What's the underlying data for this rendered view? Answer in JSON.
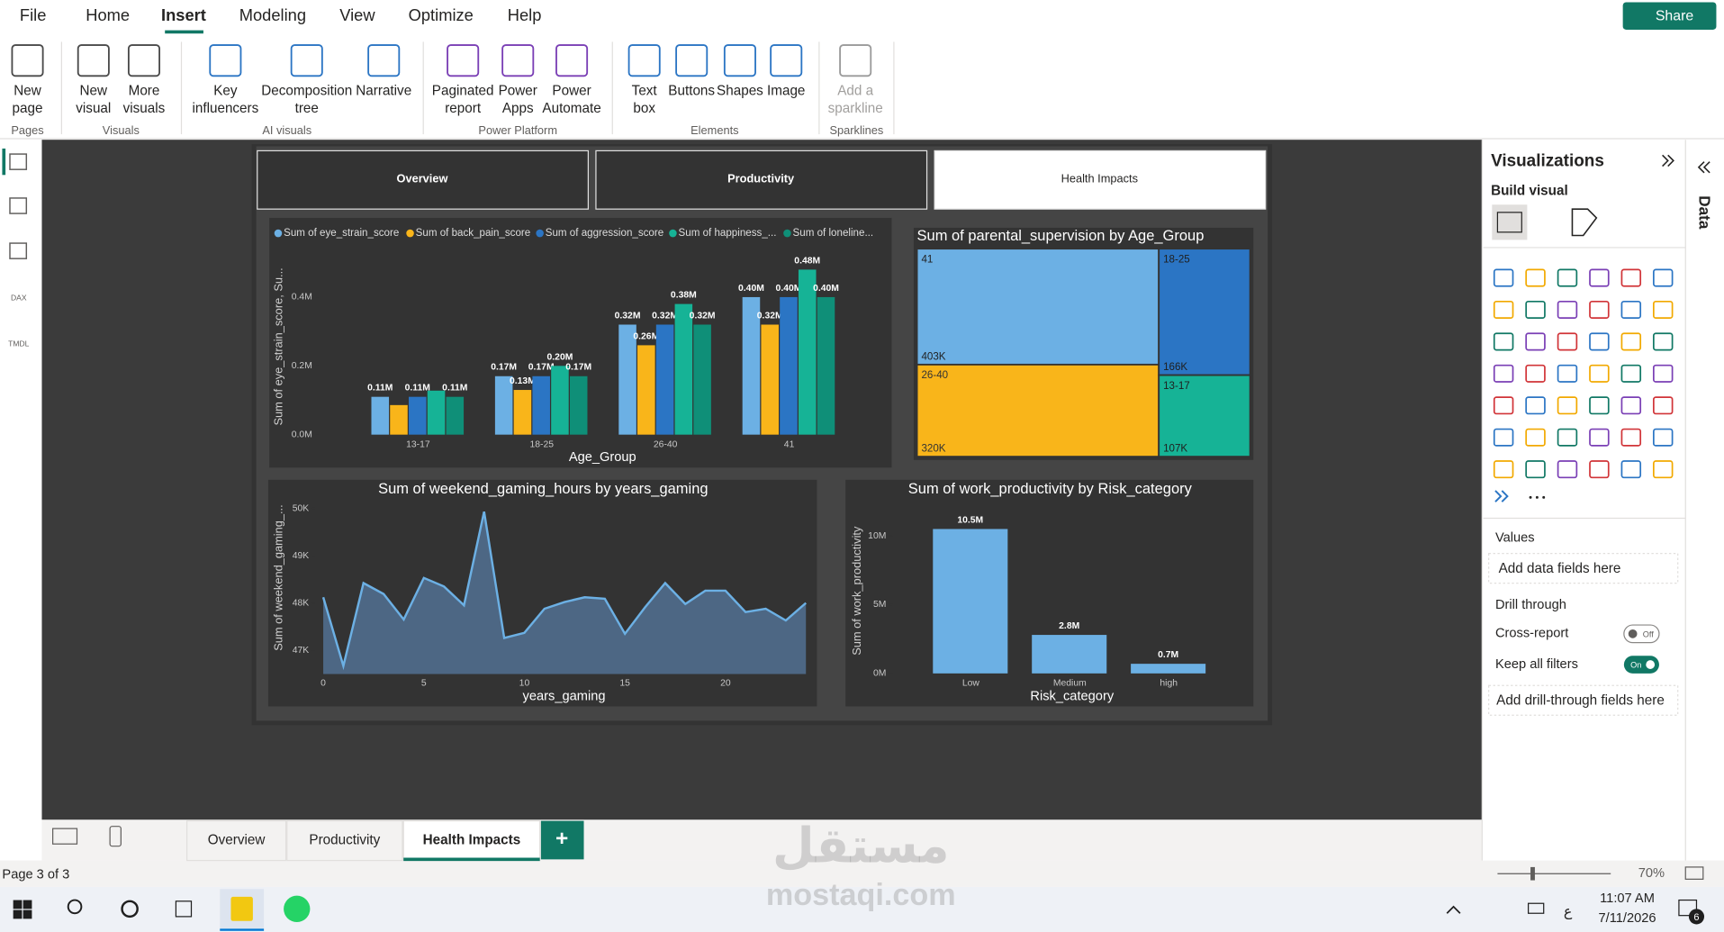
{
  "menu": [
    "File",
    "Home",
    "Insert",
    "Modeling",
    "View",
    "Optimize",
    "Help"
  ],
  "share": "Share",
  "ribbon_groups": [
    {
      "name": "Pages",
      "buttons": [
        [
          "New",
          "page"
        ]
      ]
    },
    {
      "name": "Visuals",
      "buttons": [
        [
          "New",
          "visual"
        ],
        [
          "More",
          "visuals"
        ]
      ]
    },
    {
      "name": "AI visuals",
      "buttons": [
        [
          "Key",
          "influencers"
        ],
        [
          "Decomposition",
          "tree"
        ],
        [
          "Narrative"
        ]
      ]
    },
    {
      "name": "Power Platform",
      "buttons": [
        [
          "Paginated",
          "report"
        ],
        [
          "Power",
          "Apps"
        ],
        [
          "Power",
          "Automate"
        ]
      ]
    },
    {
      "name": "Elements",
      "buttons": [
        [
          "Text",
          "box"
        ],
        [
          "Buttons"
        ],
        [
          "Shapes"
        ],
        [
          "Image"
        ]
      ]
    },
    {
      "name": "Sparklines",
      "buttons": [
        [
          "Add a",
          "sparkline"
        ]
      ]
    }
  ],
  "side_icon_labels": [
    "DAX",
    "TMDL"
  ],
  "page_buttons": [
    "Overview",
    "Productivity",
    "Health Impacts"
  ],
  "chart_data": [
    {
      "type": "bar",
      "categories": [
        "13-17",
        "18-25",
        "26-40",
        "41"
      ],
      "series": [
        {
          "name": "Sum of eye_strain_score",
          "color": "#6cb0e4",
          "values": [
            110000,
            170000,
            320000,
            400000
          ],
          "value_labels": [
            "0.11M",
            "0.17M",
            "0.32M",
            "0.40M"
          ]
        },
        {
          "name": "Sum of back_pain_score",
          "color": "#f9b51a",
          "values": [
            86000,
            130000,
            260000,
            320000
          ],
          "value_labels": [
            null,
            "0.13M",
            "0.26M",
            "0.32M"
          ]
        },
        {
          "name": "Sum of aggression_score",
          "color": "#2b75c4",
          "values": [
            110000,
            170000,
            320000,
            400000
          ],
          "value_labels": [
            "0.11M",
            "0.17M",
            "0.32M",
            "0.40M"
          ]
        },
        {
          "name": "Sum of happiness_...",
          "color": "#16b396",
          "values": [
            128000,
            200000,
            380000,
            480000
          ],
          "value_labels": [
            null,
            "0.20M",
            "0.38M",
            "0.48M"
          ]
        },
        {
          "name": "Sum of loneline...",
          "color": "#0f8f78",
          "values": [
            110000,
            170000,
            320000,
            400000
          ],
          "value_labels": [
            "0.11M",
            "0.17M",
            "0.32M",
            "0.40M"
          ]
        }
      ],
      "xlabel": "Age_Group",
      "ylabel": "Sum of eye_strain_score, Su...",
      "ylim": [
        0,
        530000
      ],
      "yticks": [
        {
          "value": 0,
          "label": "0.0M"
        },
        {
          "value": 200000,
          "label": "0.2M"
        },
        {
          "value": 400000,
          "label": "0.4M"
        }
      ]
    },
    {
      "type": "treemap",
      "title": "Sum of parental_supervision by Age_Group",
      "categories": [
        "41",
        "26-40",
        "18-25",
        "13-17"
      ],
      "values": [
        403000,
        320000,
        166000,
        107000
      ],
      "value_labels": [
        "403K",
        "320K",
        "166K",
        "107K"
      ],
      "colors": [
        "#6cb0e4",
        "#f9b51a",
        "#2b75c4",
        "#16b396"
      ]
    },
    {
      "type": "area",
      "title": "Sum of weekend_gaming_hours by years_gaming",
      "x": [
        0,
        1,
        2,
        3,
        4,
        5,
        6,
        7,
        8,
        9,
        10,
        11,
        12,
        13,
        14,
        15,
        16,
        17,
        18,
        19,
        20,
        21,
        22,
        23,
        24
      ],
      "values": [
        48120,
        46670,
        48420,
        48190,
        47650,
        48530,
        48350,
        47950,
        49930,
        47260,
        47370,
        47880,
        48020,
        48120,
        48090,
        47350,
        47910,
        48420,
        47980,
        48260,
        48260,
        47810,
        47880,
        47630,
        48000
      ],
      "color": "#6cb0e4",
      "xlabel": "years_gaming",
      "ylabel": "Sum of weekend_gaming_...",
      "xlim": [
        0,
        24
      ],
      "xticks": [
        0,
        5,
        10,
        15,
        20
      ],
      "ylim": [
        46500,
        50200
      ],
      "yticks": [
        {
          "value": 47000,
          "label": "47K"
        },
        {
          "value": 48000,
          "label": "48K"
        },
        {
          "value": 49000,
          "label": "49K"
        },
        {
          "value": 50000,
          "label": "50K"
        }
      ]
    },
    {
      "type": "bar",
      "title": "Sum of work_productivity by Risk_category",
      "categories": [
        "Low",
        "Medium",
        "high"
      ],
      "values": [
        10500000,
        2800000,
        700000
      ],
      "value_labels": [
        "10.5M",
        "2.8M",
        "0.7M"
      ],
      "color": "#6cb0e4",
      "xlabel": "Risk_category",
      "ylabel": "Sum of work_productivity",
      "ylim": [
        0,
        11400000
      ],
      "yticks": [
        {
          "value": 0,
          "label": "0M"
        },
        {
          "value": 5000000,
          "label": "5M"
        },
        {
          "value": 10000000,
          "label": "10M"
        }
      ]
    }
  ],
  "visualizations": {
    "title": "Visualizations",
    "build_visual": "Build visual",
    "values_label": "Values",
    "values_placeholder": "Add data fields here",
    "drill_through": "Drill through",
    "cross_report": "Cross-report",
    "cross_report_state": "Off",
    "keep_filters": "Keep all filters",
    "keep_filters_state": "On",
    "drill_placeholder": "Add drill-through fields here"
  },
  "data_tab": "Data",
  "page_tabs": [
    "Overview",
    "Productivity",
    "Health Impacts"
  ],
  "add_tab": "+",
  "status": {
    "page": "Page 3 of 3",
    "zoom": "70%"
  },
  "taskbar": {
    "time": "11:07 AM",
    "date": "7/11/2026",
    "lang": "ع",
    "notifications": 6
  },
  "watermark": [
    "مستقل",
    "mostaqi.com"
  ]
}
